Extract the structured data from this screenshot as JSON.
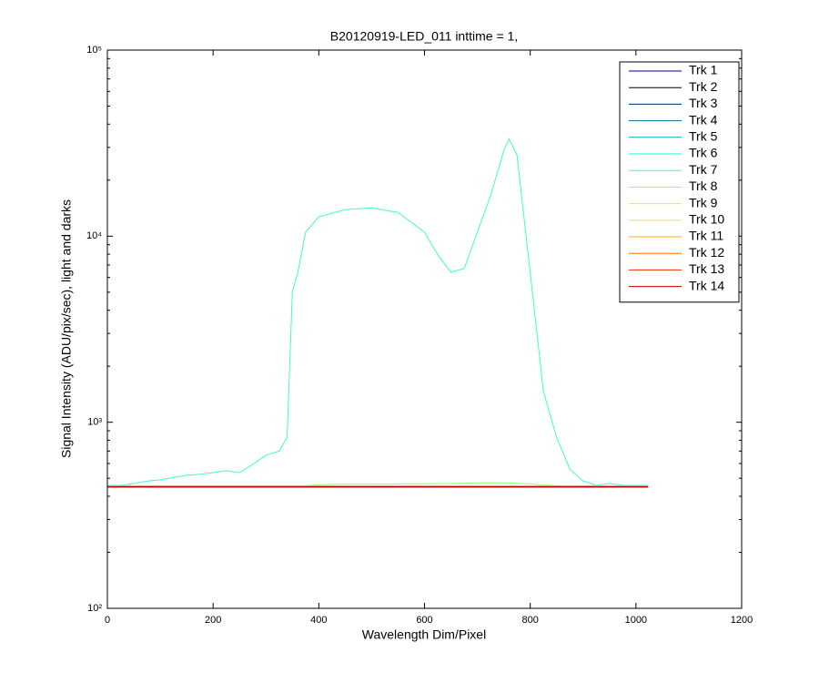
{
  "chart_data": {
    "type": "line",
    "title": "B20120919-LED_011 inttime = 1,",
    "x_label": "Wavelength Dim/Pixel",
    "y_label": "Signal Intensity (ADU/pix/sec), light and darks",
    "log_y": true,
    "legend": "northeast",
    "xlim": [
      0,
      1200
    ],
    "xticks": [
      0,
      200,
      400,
      600,
      800,
      1000,
      1200
    ],
    "ylim": [
      100,
      100000
    ],
    "yticks": [
      {
        "value": 100,
        "label": "10²"
      },
      {
        "value": 1000,
        "label": "10³"
      },
      {
        "value": 10000,
        "label": "10⁴"
      },
      {
        "value": 100000,
        "label": "10⁵"
      }
    ],
    "x": [
      0,
      25,
      50,
      75,
      100,
      125,
      150,
      175,
      200,
      225,
      250,
      275,
      300,
      325,
      340,
      350,
      360,
      375,
      400,
      450,
      500,
      550,
      600,
      625,
      650,
      675,
      700,
      725,
      750,
      760,
      775,
      800,
      825,
      850,
      875,
      900,
      925,
      950,
      975,
      1000,
      1023
    ],
    "series": [
      {
        "name": "Trk 1",
        "color": "#00008f",
        "values": [
          448,
          448,
          448,
          448,
          448,
          448,
          448,
          448,
          448,
          448,
          448,
          448,
          448,
          448,
          448,
          448,
          448,
          448,
          448,
          448,
          448,
          448,
          448,
          448,
          448,
          448,
          448,
          448,
          448,
          448,
          448,
          448,
          448,
          448,
          448,
          448,
          448,
          448,
          448,
          448,
          448
        ]
      },
      {
        "name": "Trk 2",
        "color": "#000000",
        "values": [
          450,
          450,
          450,
          450,
          450,
          450,
          450,
          450,
          450,
          450,
          450,
          450,
          450,
          450,
          450,
          450,
          450,
          450,
          450,
          450,
          450,
          450,
          450,
          450,
          450,
          450,
          450,
          450,
          450,
          450,
          450,
          450,
          450,
          450,
          450,
          450,
          450,
          450,
          450,
          450,
          450
        ]
      },
      {
        "name": "Trk 3",
        "color": "#00277f",
        "values": [
          450,
          450,
          450,
          450,
          450,
          450,
          450,
          450,
          450,
          450,
          450,
          450,
          450,
          450,
          450,
          450,
          450,
          450,
          450,
          450,
          450,
          450,
          450,
          450,
          450,
          450,
          450,
          450,
          450,
          450,
          450,
          450,
          450,
          450,
          450,
          450,
          450,
          450,
          450,
          450,
          450
        ]
      },
      {
        "name": "Trk 4",
        "color": "#00738f",
        "values": [
          451,
          451,
          451,
          451,
          451,
          451,
          451,
          451,
          451,
          451,
          451,
          451,
          451,
          451,
          451,
          451,
          451,
          451,
          451,
          451,
          451,
          451,
          451,
          451,
          451,
          451,
          451,
          451,
          451,
          451,
          451,
          451,
          451,
          451,
          451,
          451,
          451,
          451,
          451,
          451,
          451
        ]
      },
      {
        "name": "Trk 5",
        "color": "#00afbf",
        "values": [
          452,
          452,
          452,
          452,
          452,
          452,
          452,
          452,
          452,
          452,
          452,
          452,
          452,
          452,
          452,
          452,
          452,
          452,
          452,
          452,
          452,
          452,
          452,
          452,
          452,
          452,
          452,
          452,
          452,
          452,
          452,
          452,
          452,
          452,
          452,
          452,
          452,
          452,
          452,
          452,
          452
        ]
      },
      {
        "name": "Trk 6",
        "color": "#0bfff4",
        "values": [
          453,
          453,
          453,
          453,
          453,
          453,
          453,
          453,
          453,
          453,
          453,
          453,
          453,
          453,
          453,
          453,
          453,
          453,
          453,
          453,
          453,
          453,
          453,
          453,
          453,
          453,
          453,
          453,
          453,
          453,
          453,
          453,
          453,
          453,
          453,
          453,
          453,
          453,
          453,
          453,
          453
        ]
      },
      {
        "name": "Trk 7",
        "color": "#3fffbf",
        "values": [
          458,
          458,
          468,
          483,
          490,
          505,
          518,
          525,
          536,
          549,
          536,
          594,
          665,
          700,
          830,
          5050,
          6320,
          10500,
          12700,
          13900,
          14200,
          13400,
          10500,
          7950,
          6400,
          6700,
          10500,
          16500,
          28800,
          33400,
          27300,
          6340,
          1460,
          830,
          560,
          483,
          458,
          470,
          458,
          458,
          458
        ]
      },
      {
        "name": "Trk 8",
        "color": "#8fff6f",
        "values": [
          455,
          455,
          455,
          455,
          455,
          455,
          455,
          455,
          455,
          455,
          455,
          455,
          455,
          455,
          455,
          455,
          455,
          455,
          462,
          465,
          465,
          466,
          467,
          468,
          468,
          470,
          472,
          473,
          472,
          472,
          470,
          466,
          460,
          455,
          455,
          455,
          455,
          455,
          455,
          455,
          455
        ]
      },
      {
        "name": "Trk 9",
        "color": "#cfff2f",
        "values": [
          454,
          454,
          454,
          454,
          454,
          454,
          454,
          454,
          454,
          454,
          454,
          454,
          454,
          454,
          454,
          454,
          454,
          454,
          454,
          454,
          454,
          454,
          454,
          454,
          454,
          454,
          454,
          454,
          454,
          454,
          454,
          454,
          454,
          454,
          454,
          454,
          454,
          454,
          454,
          454,
          454
        ]
      },
      {
        "name": "Trk 10",
        "color": "#ffef00",
        "values": [
          453,
          453,
          453,
          453,
          453,
          453,
          453,
          453,
          453,
          453,
          453,
          453,
          453,
          453,
          453,
          453,
          453,
          453,
          453,
          453,
          453,
          453,
          453,
          453,
          453,
          453,
          453,
          453,
          453,
          453,
          453,
          453,
          453,
          453,
          453,
          453,
          453,
          453,
          453,
          453,
          453
        ]
      },
      {
        "name": "Trk 11",
        "color": "#ffaf00",
        "values": [
          452,
          452,
          452,
          452,
          452,
          452,
          452,
          452,
          452,
          452,
          452,
          452,
          452,
          452,
          452,
          452,
          452,
          452,
          452,
          452,
          452,
          452,
          452,
          452,
          452,
          452,
          452,
          452,
          452,
          452,
          452,
          452,
          452,
          452,
          452,
          452,
          452,
          452,
          452,
          452,
          452
        ]
      },
      {
        "name": "Trk 12",
        "color": "#ff6f00",
        "values": [
          451,
          451,
          451,
          451,
          451,
          451,
          451,
          451,
          451,
          451,
          451,
          451,
          451,
          451,
          451,
          451,
          451,
          451,
          451,
          451,
          451,
          451,
          451,
          451,
          451,
          451,
          451,
          451,
          451,
          451,
          451,
          451,
          451,
          451,
          451,
          451,
          451,
          451,
          451,
          451,
          451
        ]
      },
      {
        "name": "Trk 13",
        "color": "#ef2f00",
        "values": [
          451,
          451,
          451,
          451,
          451,
          451,
          451,
          451,
          451,
          451,
          451,
          451,
          451,
          451,
          451,
          451,
          451,
          451,
          451,
          451,
          451,
          451,
          451,
          451,
          451,
          451,
          451,
          451,
          451,
          451,
          451,
          451,
          451,
          451,
          451,
          451,
          451,
          451,
          451,
          451,
          451
        ]
      },
      {
        "name": "Trk 14",
        "color": "#bf0000",
        "values": [
          450,
          450,
          450,
          450,
          450,
          450,
          450,
          450,
          450,
          450,
          450,
          450,
          450,
          450,
          450,
          450,
          450,
          450,
          450,
          450,
          450,
          450,
          450,
          450,
          450,
          450,
          450,
          450,
          450,
          450,
          450,
          450,
          450,
          450,
          450,
          450,
          450,
          450,
          450,
          450,
          450
        ]
      }
    ]
  }
}
